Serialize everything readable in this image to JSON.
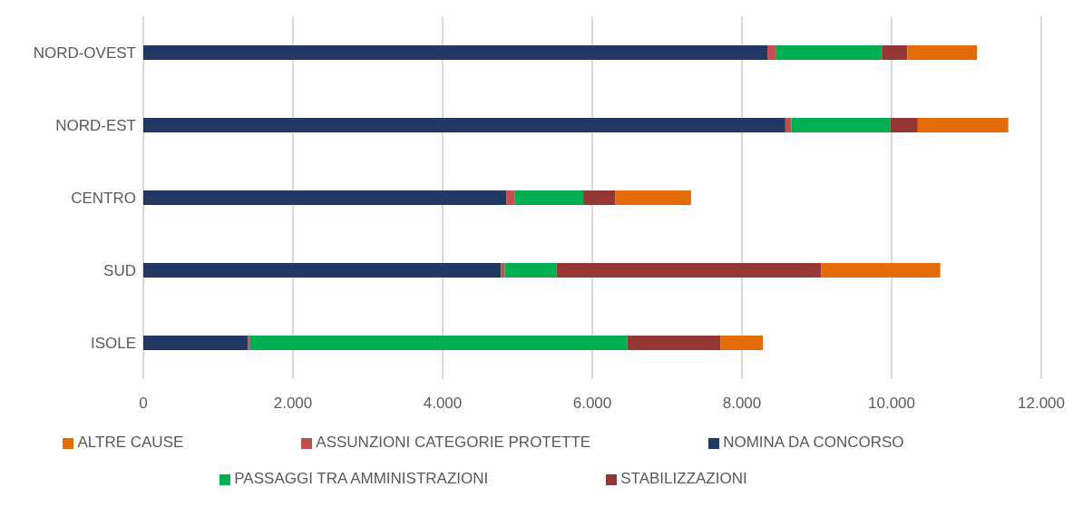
{
  "chart_data": {
    "type": "bar",
    "orientation": "horizontal",
    "stacked": true,
    "categories": [
      "NORD-OVEST",
      "NORD-EST",
      "CENTRO",
      "SUD",
      "ISOLE"
    ],
    "series": [
      {
        "name": "NOMINA DA CONCORSO",
        "color": "#203864",
        "values": [
          8340,
          8580,
          4850,
          4780,
          1400
        ]
      },
      {
        "name": "ASSUNZIONI CATEGORIE PROTETTE",
        "color": "#c0504d",
        "values": [
          110,
          80,
          110,
          50,
          20
        ]
      },
      {
        "name": "PASSAGGI TRA AMMINISTRAZIONI",
        "color": "#00b050",
        "values": [
          1420,
          1320,
          920,
          690,
          5050
        ]
      },
      {
        "name": "STABILIZZAZIONI",
        "color": "#943634",
        "values": [
          340,
          370,
          430,
          3540,
          1240
        ]
      },
      {
        "name": "ALTRE CAUSE",
        "color": "#e36c09",
        "values": [
          930,
          1210,
          1010,
          1590,
          570
        ]
      }
    ],
    "xlim": [
      0,
      12000
    ],
    "xticks": [
      0,
      {
        "value": 2000,
        "label": "2.000"
      },
      {
        "value": 4000,
        "label": "4.000"
      },
      {
        "value": 6000,
        "label": "6.000"
      },
      {
        "value": 8000,
        "label": "8.000"
      },
      {
        "value": 10000,
        "label": "10.000"
      },
      {
        "value": 12000,
        "label": "12.000"
      }
    ],
    "grid": "x",
    "legend": "bottom"
  }
}
